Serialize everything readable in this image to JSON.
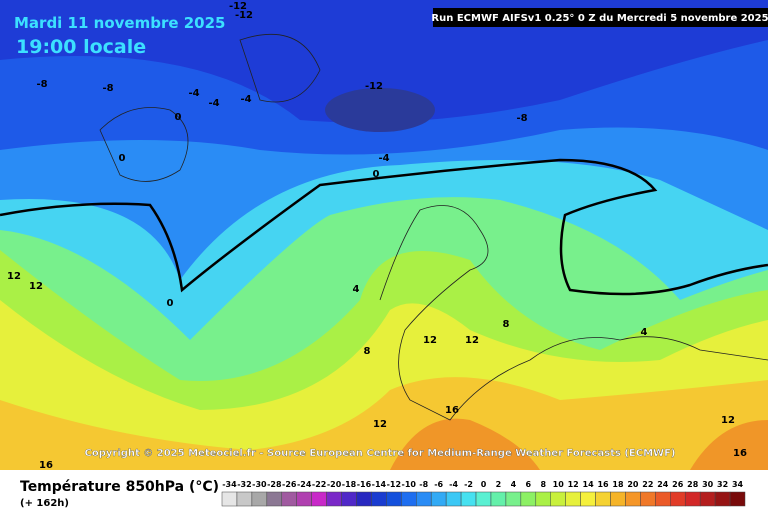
{
  "header": {
    "date": "Mardi 11 novembre 2025",
    "time": "19:00 locale",
    "run": "Run ECMWF AIFSv1 0.25° 0 Z du Mercredi 5 novembre 2025"
  },
  "map": {
    "copyright": "Copyright © 2025 Meteociel.fr - Source European Centre for Medium-Range Weather Forecasts (ECMWF)",
    "contour_labels": [
      -12,
      -12,
      -8,
      -8,
      -4,
      -4,
      -4,
      0,
      0,
      -12,
      -8,
      -4,
      0,
      0,
      4,
      8,
      12,
      12,
      12,
      12,
      8,
      4,
      12,
      16,
      12,
      16,
      16
    ]
  },
  "legend": {
    "title": "Température 850hPa (°C)",
    "lead": "(+ 162h)",
    "ticks": [
      -34,
      -32,
      -30,
      -28,
      -26,
      -24,
      -22,
      -20,
      -18,
      -16,
      -14,
      -12,
      -10,
      -8,
      -6,
      -4,
      -2,
      0,
      2,
      4,
      6,
      8,
      10,
      12,
      14,
      16,
      18,
      20,
      22,
      24,
      26,
      28,
      30,
      32,
      34
    ],
    "colors": [
      "#e6e6e6",
      "#c8c8c8",
      "#a8a8a8",
      "#8c7894",
      "#a05aa0",
      "#b040b0",
      "#c828c8",
      "#7a28c8",
      "#5028c8",
      "#2828c0",
      "#1a3cd0",
      "#1450dc",
      "#1e6ef0",
      "#2a8cf5",
      "#32aaf5",
      "#3cc8f5",
      "#46e1f0",
      "#5af0d2",
      "#64f0aa",
      "#78f08c",
      "#8cf064",
      "#aaf046",
      "#c8f03c",
      "#e6f03c",
      "#f5f03c",
      "#f5d232",
      "#f5b428",
      "#f59628",
      "#f07828",
      "#eb5a28",
      "#e13c28",
      "#d22828",
      "#b41e1e",
      "#961414",
      "#780a0a"
    ]
  }
}
